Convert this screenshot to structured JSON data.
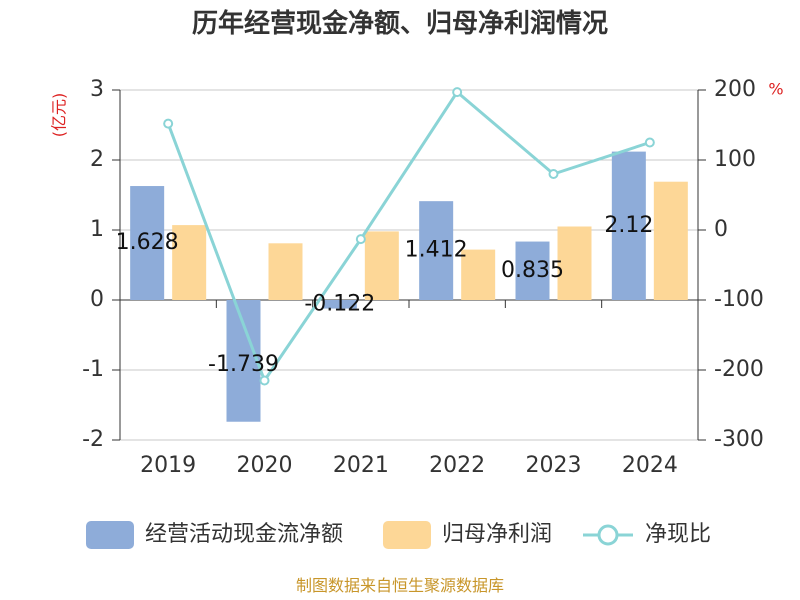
{
  "chart_data": {
    "type": "bar",
    "title": "历年经营现金净额、归母净利润情况",
    "categories": [
      "2019",
      "2020",
      "2021",
      "2022",
      "2023",
      "2024"
    ],
    "left_axis": {
      "unit": "(亿元)",
      "ylim": [
        -2,
        3
      ],
      "ticks": [
        "3",
        "2",
        "1",
        "0",
        "-1",
        "-2"
      ]
    },
    "right_axis": {
      "unit": "%",
      "ylim": [
        -300,
        200
      ],
      "ticks": [
        "200",
        "100",
        "0",
        "-100",
        "-200",
        "-300"
      ]
    },
    "series": [
      {
        "name": "经营活动现金流净额",
        "kind": "bar",
        "axis": "left",
        "color": "#8eacd9",
        "values": [
          1.628,
          -1.739,
          -0.122,
          1.412,
          0.835,
          2.12
        ],
        "labels": [
          "1.628",
          "-1.739",
          "-0.122",
          "1.412",
          "0.835",
          "2.12"
        ]
      },
      {
        "name": "归母净利润",
        "kind": "bar",
        "axis": "left",
        "color": "#fdd797",
        "values": [
          1.07,
          0.81,
          0.98,
          0.72,
          1.05,
          1.69
        ]
      },
      {
        "name": "净现比",
        "kind": "line",
        "axis": "right",
        "color": "#8ad4d6",
        "values": [
          152,
          -215,
          -13,
          197,
          80,
          125
        ]
      }
    ],
    "grid": true,
    "legend_position": "bottom"
  },
  "source": "制图数据来自恒生聚源数据库"
}
